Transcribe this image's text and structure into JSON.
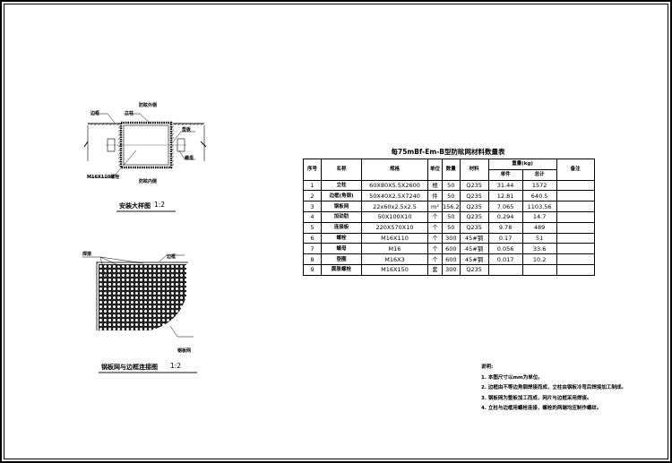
{
  "detail1": {
    "title": "安装大样图",
    "scale": "1:2",
    "labels": {
      "outer": "防眩外侧",
      "inner": "防眩内侧",
      "frame": "边框",
      "post": "立柱",
      "plate": "垫板",
      "nut": "螺母",
      "bolt": "M16X110螺栓"
    }
  },
  "detail2": {
    "title": "钢板网与边框连接图",
    "scale": "1:2",
    "labels": {
      "weld": "焊接",
      "frame": "边框",
      "mesh": "钢板网"
    }
  },
  "table": {
    "title": "每75mBf-Em-B型防眩网材料数量表",
    "headers": {
      "no": "序号",
      "name": "名称",
      "spec": "规格",
      "unit": "单位",
      "qty": "数量",
      "material": "材料",
      "weight": "重量(kg)",
      "unit_weight": "单件",
      "total": "总计",
      "remark": "备注"
    },
    "rows": [
      {
        "no": "1",
        "name": "立柱",
        "spec": "60X80X5.5X2600",
        "unit": "根",
        "qty": "50",
        "material": "Q235",
        "unit_weight": "31.44",
        "total": "1572"
      },
      {
        "no": "2",
        "name": "边框(角钢)",
        "spec": "50X40X2.5X7240",
        "unit": "件",
        "qty": "50",
        "material": "Q235",
        "unit_weight": "12.81",
        "total": "640.5"
      },
      {
        "no": "3",
        "name": "钢板网",
        "spec": "22x60x2.5x2.5",
        "unit": "m²",
        "qty": "156.2",
        "material": "Q235",
        "unit_weight": "7.065",
        "total": "1103.56"
      },
      {
        "no": "4",
        "name": "加劲肋",
        "spec": "50X100X10",
        "unit": "个",
        "qty": "50",
        "material": "Q235",
        "unit_weight": "0.294",
        "total": "14.7"
      },
      {
        "no": "5",
        "name": "连接板",
        "spec": "220X570X10",
        "unit": "个",
        "qty": "50",
        "material": "Q235",
        "unit_weight": "9.78",
        "total": "489"
      },
      {
        "no": "6",
        "name": "螺栓",
        "spec": "M16X110",
        "unit": "个",
        "qty": "300",
        "material": "45#钢",
        "unit_weight": "0.17",
        "total": "51"
      },
      {
        "no": "7",
        "name": "螺母",
        "spec": "M16",
        "unit": "个",
        "qty": "600",
        "material": "45#钢",
        "unit_weight": "0.056",
        "total": "33.6"
      },
      {
        "no": "8",
        "name": "垫圈",
        "spec": "M16X3",
        "unit": "个",
        "qty": "600",
        "material": "45#钢",
        "unit_weight": "0.017",
        "total": "10.2"
      },
      {
        "no": "9",
        "name": "膨胀螺栓",
        "spec": "M16X150",
        "unit": "套",
        "qty": "300",
        "material": "Q235",
        "unit_weight": "",
        "total": ""
      }
    ]
  },
  "notes": {
    "heading": "说明:",
    "items": [
      "1. 本图尺寸以mm为单位。",
      "2. 边框由不等边角钢焊接而成，立柱由钢板冷弯后焊接加工制成。",
      "3. 钢板网为整板加工而成，网片与边框采用焊接。",
      "4. 立柱与边框用螺栓连接，螺栓的两端均应制作螺纹。"
    ]
  }
}
